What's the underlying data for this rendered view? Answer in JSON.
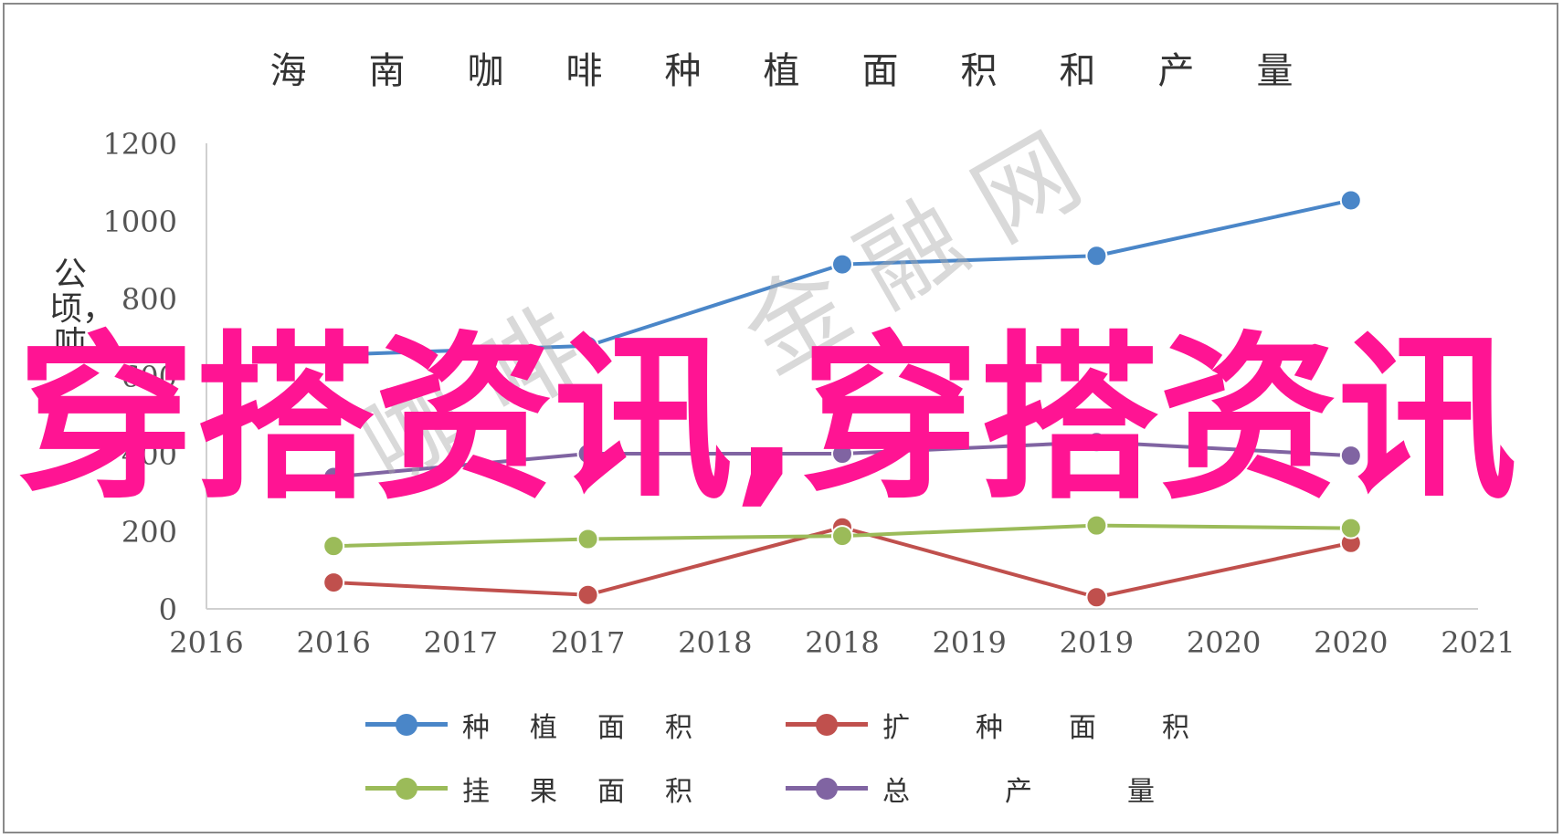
{
  "chart_data": {
    "type": "line",
    "title": "海南咖啡种植面积和产量",
    "ylabel": "公顷，吨",
    "xlabel": "",
    "x_tick_labels": [
      "2016",
      "2016",
      "2017",
      "2017",
      "2018",
      "2018",
      "2019",
      "2019",
      "2020",
      "2020",
      "2021"
    ],
    "categories": [
      "2016",
      "2017",
      "2018",
      "2019",
      "2020"
    ],
    "ylim": [
      0,
      1200
    ],
    "y_ticks": [
      0,
      200,
      400,
      600,
      800,
      1000,
      1200
    ],
    "grid": false,
    "legend_position": "bottom",
    "series": [
      {
        "name": "种植面积",
        "color": "#4a86c8",
        "values": [
          655,
          678,
          888,
          910,
          1053
        ]
      },
      {
        "name": "扩种面积",
        "color": "#c0504d",
        "values": [
          68,
          36,
          210,
          30,
          170
        ]
      },
      {
        "name": "挂果面积",
        "color": "#9bbb59",
        "values": [
          162,
          180,
          188,
          215,
          208
        ]
      },
      {
        "name": "总产量",
        "color": "#8064a2",
        "values": [
          340,
          400,
          400,
          430,
          395
        ]
      }
    ]
  },
  "overlay_text": "穿搭资讯,穿搭资讯",
  "watermark": {
    "line1": "咖 啡",
    "line2": "金 融 网"
  }
}
